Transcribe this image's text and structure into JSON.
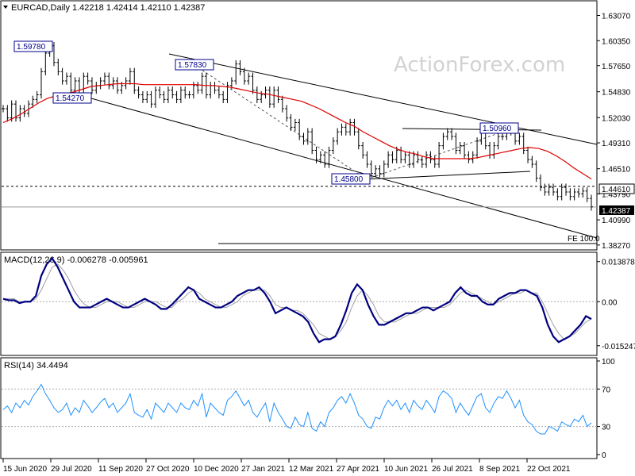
{
  "watermark": "ActionForex.com",
  "chart_data": [
    {
      "type": "line",
      "panel": "price",
      "title": "EURCAD,Daily  1.42218 1.42414 1.42110 1.42387",
      "y_ticks": [
        1.6307,
        1.6035,
        1.5765,
        1.5483,
        1.5203,
        1.4931,
        1.4651,
        1.4379,
        1.4099,
        1.3827
      ],
      "y_tick_labels": [
        "1.63070",
        "1.60350",
        "1.57650",
        "1.54830",
        "1.52030",
        "1.49310",
        "1.46510",
        "1.43790",
        "1.40990",
        "1.38270"
      ],
      "ylim": [
        1.38,
        1.644
      ],
      "x_tick_labels": [
        "15 Jun 2020",
        "29 Jul 2020",
        "11 Sep 2020",
        "27 Oct 2020",
        "10 Dec 2020",
        "27 Jan 2021",
        "12 Mar 2021",
        "27 Apr 2021",
        "10 Jun 2021",
        "26 Jul 2021",
        "8 Sep 2021",
        "22 Oct 2021"
      ],
      "price_labels": [
        {
          "text": "1.59780",
          "value": 1.5978
        },
        {
          "text": "1.54270",
          "value": 1.5427
        },
        {
          "text": "1.57830",
          "value": 1.5783
        },
        {
          "text": "1.45800",
          "value": 1.458
        },
        {
          "text": "1.50960",
          "value": 1.5096
        }
      ],
      "levels": [
        {
          "label": "1.44610",
          "value": 1.4461,
          "style": "dashed"
        },
        {
          "label": "1.42387",
          "value": 1.42387,
          "style": "solid-grey"
        }
      ],
      "fe_label": "FE 100.0",
      "fe_value": 1.3915,
      "series": [
        {
          "type": "close",
          "values": [
            1.53,
            1.52,
            1.535,
            1.52,
            1.53,
            1.525,
            1.535,
            1.54,
            1.545,
            1.57,
            1.59,
            1.598,
            1.58,
            1.57,
            1.56,
            1.565,
            1.55,
            1.56,
            1.545,
            1.565,
            1.56,
            1.55,
            1.555,
            1.56,
            1.565,
            1.555,
            1.56,
            1.55,
            1.555,
            1.56,
            1.57,
            1.55,
            1.545,
            1.54,
            1.545,
            1.535,
            1.55,
            1.545,
            1.54,
            1.55,
            1.545,
            1.54,
            1.55,
            1.545,
            1.545,
            1.555,
            1.55,
            1.565,
            1.545,
            1.555,
            1.55,
            1.545,
            1.54,
            1.555,
            1.56,
            1.5783,
            1.57,
            1.56,
            1.565,
            1.55,
            1.54,
            1.545,
            1.55,
            1.535,
            1.55,
            1.54,
            1.53,
            1.52,
            1.51,
            1.515,
            1.5,
            1.495,
            1.505,
            1.485,
            1.475,
            1.48,
            1.47,
            1.485,
            1.495,
            1.505,
            1.51,
            1.505,
            1.515,
            1.505,
            1.49,
            1.48,
            1.47,
            1.46,
            1.465,
            1.46,
            1.47,
            1.48,
            1.475,
            1.485,
            1.475,
            1.48,
            1.47,
            1.48,
            1.475,
            1.47,
            1.48,
            1.475,
            1.47,
            1.49,
            1.5,
            1.505,
            1.5,
            1.485,
            1.49,
            1.48,
            1.475,
            1.48,
            1.495,
            1.505,
            1.49,
            1.48,
            1.49,
            1.5,
            1.5,
            1.5096,
            1.505,
            1.495,
            1.5,
            1.485,
            1.475,
            1.47,
            1.455,
            1.445,
            1.44,
            1.445,
            1.44,
            1.435,
            1.445,
            1.44,
            1.435,
            1.44,
            1.438,
            1.441,
            1.433,
            1.4239
          ]
        },
        {
          "type": "sma",
          "values": [
            1.515,
            1.519,
            1.524,
            1.53,
            1.536,
            1.541,
            1.544,
            1.546,
            1.548,
            1.551,
            1.554,
            1.555,
            1.556,
            1.557,
            1.557,
            1.557,
            1.556,
            1.556,
            1.556,
            1.556,
            1.556,
            1.556,
            1.556,
            1.555,
            1.555,
            1.554,
            1.553,
            1.551,
            1.549,
            1.547,
            1.546,
            1.544,
            1.542,
            1.54,
            1.538,
            1.534,
            1.53,
            1.525,
            1.52,
            1.515,
            1.511,
            1.505,
            1.5,
            1.495,
            1.49,
            1.486,
            1.483,
            1.481,
            1.478,
            1.476,
            1.476,
            1.476,
            1.476,
            1.476,
            1.477,
            1.479,
            1.481,
            1.483,
            1.485,
            1.487,
            1.488,
            1.487,
            1.484,
            1.479,
            1.473,
            1.466,
            1.46,
            1.454
          ]
        }
      ]
    },
    {
      "type": "line",
      "panel": "macd",
      "title": "MACD(12,26,9) -0.006278 -0.005961",
      "y_ticks": [
        0.013878,
        0.0,
        -0.015247
      ],
      "y_tick_labels": [
        "0.013878",
        "0.00",
        "-0.015247"
      ],
      "ylim": [
        -0.0175,
        0.016
      ],
      "series": [
        {
          "name": "macd",
          "values": [
            0.001,
            0.0005,
            0.0005,
            -0.0005,
            0.0,
            0.0,
            0.002,
            0.009,
            0.013,
            0.015,
            0.012,
            0.008,
            0.004,
            0.0,
            -0.002,
            -0.002,
            -0.002,
            -0.001,
            0.0,
            0.001,
            0.0,
            -0.001,
            -0.002,
            -0.002,
            -0.001,
            0.0,
            0.001,
            0.0,
            -0.001,
            -0.0025,
            -0.0025,
            -0.001,
            0.001,
            0.003,
            0.005,
            0.004,
            0.001,
            0.0,
            -0.001,
            -0.002,
            -0.002,
            -0.001,
            0.0,
            0.002,
            0.003,
            0.004,
            0.004,
            0.005,
            0.003,
            0.0,
            -0.004,
            -0.003,
            -0.002,
            -0.003,
            -0.004,
            -0.005,
            -0.007,
            -0.011,
            -0.014,
            -0.013,
            -0.013,
            -0.012,
            -0.008,
            -0.003,
            0.003,
            0.006,
            0.004,
            -0.001,
            -0.005,
            -0.008,
            -0.008,
            -0.007,
            -0.006,
            -0.005,
            -0.004,
            -0.004,
            -0.003,
            -0.002,
            -0.002,
            -0.003,
            -0.002,
            -0.001,
            0.0,
            0.003,
            0.005,
            0.003,
            0.002,
            0.002,
            0.0,
            -0.001,
            -0.001,
            0.001,
            0.002,
            0.003,
            0.003,
            0.004,
            0.004,
            0.003,
            0.002,
            -0.002,
            -0.008,
            -0.012,
            -0.014,
            -0.013,
            -0.012,
            -0.01,
            -0.008,
            -0.005,
            -0.006
          ]
        },
        {
          "name": "signal",
          "values": [
            0.001,
            0.001,
            0.001,
            0.0,
            0.0,
            0.0,
            0.001,
            0.004,
            0.008,
            0.012,
            0.013,
            0.011,
            0.008,
            0.004,
            0.001,
            -0.001,
            -0.002,
            -0.002,
            -0.001,
            0.0,
            0.0,
            0.0,
            -0.001,
            -0.002,
            -0.002,
            -0.001,
            0.0,
            0.0,
            0.0,
            -0.001,
            -0.002,
            -0.002,
            0.0,
            0.001,
            0.003,
            0.004,
            0.003,
            0.001,
            0.0,
            -0.001,
            -0.002,
            -0.002,
            -0.001,
            0.0,
            0.002,
            0.003,
            0.004,
            0.004,
            0.004,
            0.002,
            -0.001,
            -0.002,
            -0.002,
            -0.003,
            -0.003,
            -0.004,
            -0.006,
            -0.008,
            -0.011,
            -0.012,
            -0.013,
            -0.012,
            -0.01,
            -0.007,
            -0.002,
            0.002,
            0.004,
            0.002,
            -0.001,
            -0.005,
            -0.007,
            -0.007,
            -0.007,
            -0.006,
            -0.005,
            -0.004,
            -0.004,
            -0.003,
            -0.002,
            -0.002,
            -0.002,
            -0.002,
            -0.001,
            0.001,
            0.003,
            0.004,
            0.003,
            0.002,
            0.001,
            0.0,
            -0.001,
            0.0,
            0.001,
            0.002,
            0.003,
            0.003,
            0.004,
            0.003,
            0.003,
            0.0,
            -0.004,
            -0.008,
            -0.011,
            -0.013,
            -0.012,
            -0.011,
            -0.009,
            -0.007,
            -0.006
          ]
        }
      ]
    },
    {
      "type": "line",
      "panel": "rsi",
      "title": "RSI(14) 34.4494",
      "y_ticks": [
        100,
        70,
        30,
        0
      ],
      "y_tick_labels": [
        "100",
        "70",
        "30",
        "0"
      ],
      "ylim": [
        0,
        100
      ],
      "levels": [
        70,
        30
      ],
      "series": [
        {
          "name": "RSI(14)",
          "values": [
            48,
            52,
            45,
            55,
            50,
            58,
            53,
            62,
            68,
            75,
            65,
            58,
            50,
            45,
            48,
            55,
            42,
            50,
            45,
            58,
            52,
            45,
            50,
            56,
            60,
            50,
            55,
            45,
            50,
            55,
            65,
            45,
            42,
            40,
            48,
            38,
            55,
            50,
            45,
            55,
            50,
            45,
            55,
            50,
            48,
            58,
            52,
            65,
            40,
            55,
            50,
            45,
            42,
            58,
            62,
            68,
            60,
            52,
            58,
            45,
            40,
            48,
            55,
            35,
            55,
            45,
            38,
            30,
            28,
            40,
            32,
            30,
            45,
            28,
            25,
            35,
            30,
            45,
            50,
            58,
            62,
            55,
            65,
            55,
            42,
            38,
            30,
            28,
            40,
            38,
            50,
            58,
            52,
            58,
            48,
            55,
            45,
            58,
            52,
            48,
            58,
            52,
            45,
            62,
            68,
            65,
            60,
            45,
            55,
            48,
            42,
            52,
            62,
            65,
            50,
            45,
            55,
            62,
            60,
            68,
            60,
            50,
            58,
            42,
            35,
            32,
            25,
            22,
            22,
            30,
            28,
            25,
            35,
            32,
            30,
            38,
            35,
            42,
            30,
            34
          ]
        }
      ]
    }
  ]
}
